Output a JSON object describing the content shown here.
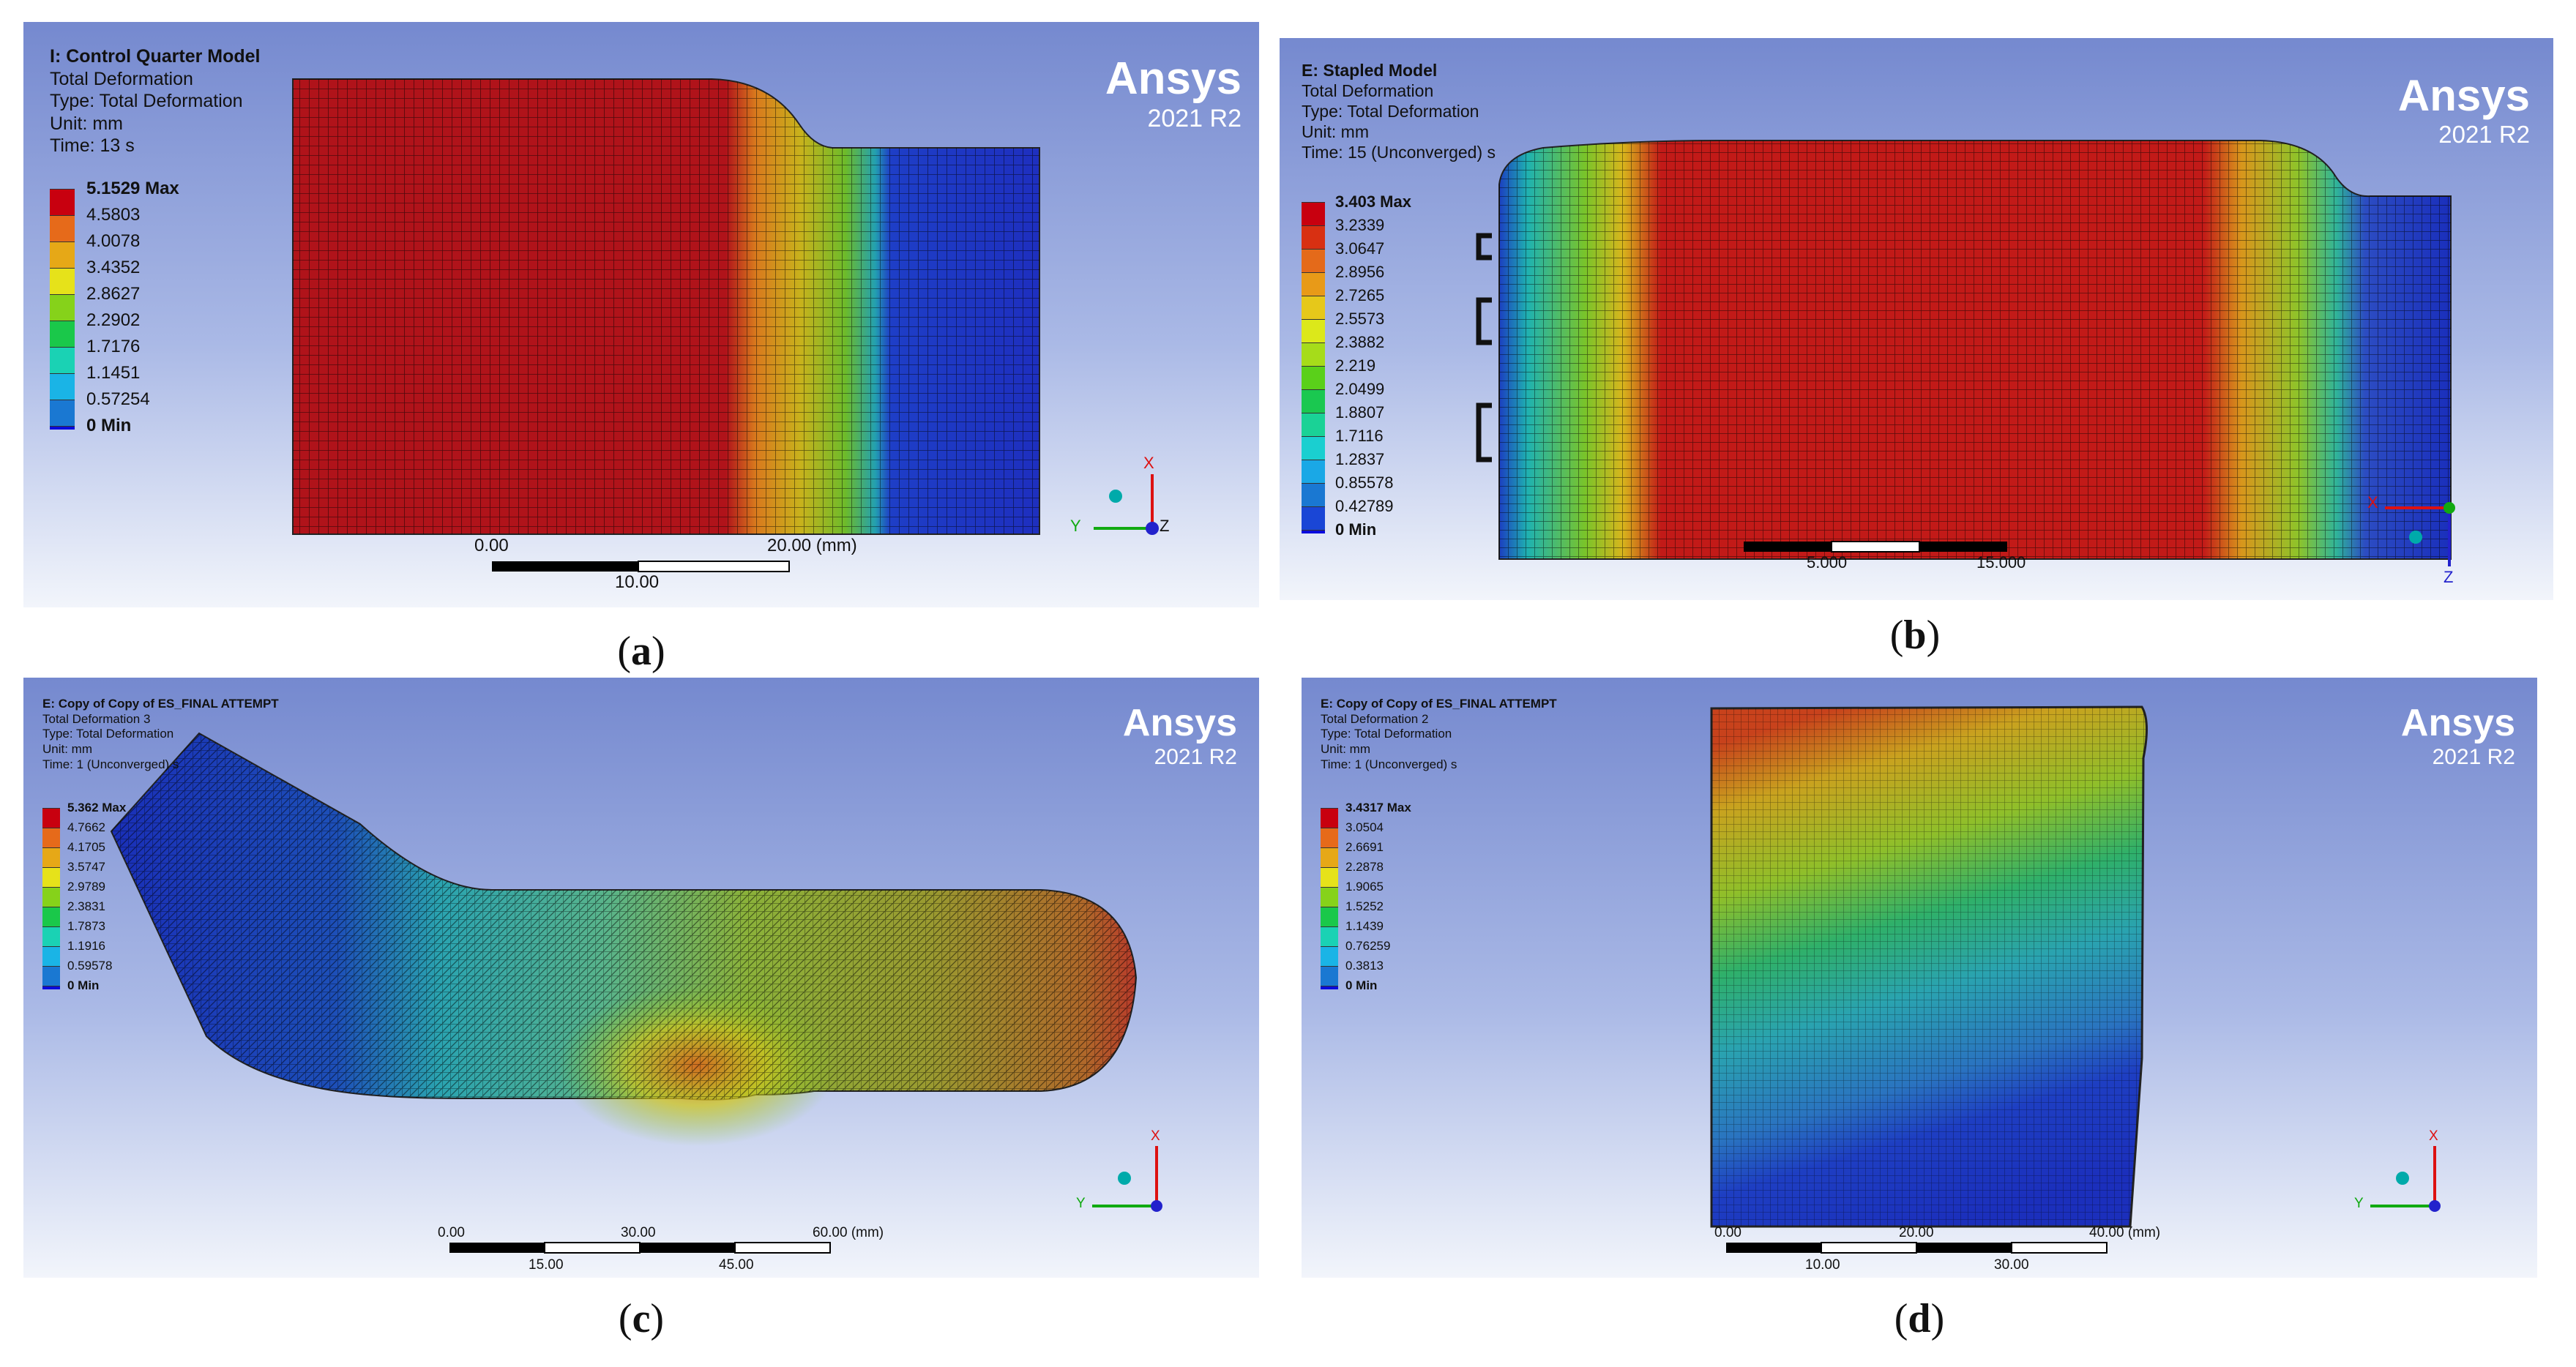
{
  "panels": [
    {
      "id": "a",
      "caption_letter": "a",
      "title": "I: Control Quarter Model",
      "result": "Total Deformation",
      "type": "Type: Total Deformation",
      "unit": "Unit: mm",
      "time": "Time: 13 s",
      "legend": [
        "5.1529 Max",
        "4.5803",
        "4.0078",
        "3.4352",
        "2.8627",
        "2.2902",
        "1.7176",
        "1.1451",
        "0.57254",
        "0 Min"
      ],
      "scale_top": [
        "0.00",
        "20.00 (mm)"
      ],
      "scale_bottom": [
        "10.00"
      ],
      "axes": [
        "X",
        "Y",
        "Z"
      ]
    },
    {
      "id": "b",
      "caption_letter": "b",
      "title": "E: Stapled Model",
      "result": "Total Deformation",
      "type": "Type: Total Deformation",
      "unit": "Unit: mm",
      "time": "Time: 15 (Unconverged) s",
      "legend": [
        "3.403 Max",
        "3.2339",
        "3.0647",
        "2.8956",
        "2.7265",
        "2.5573",
        "2.3882",
        "2.219",
        "2.0499",
        "1.8807",
        "1.7116",
        "1.2837",
        "0.85578",
        "0.42789",
        "0 Min"
      ],
      "scale_bottom": [
        "5.000",
        "15.000"
      ],
      "axes": [
        "X",
        "Z"
      ]
    },
    {
      "id": "c",
      "caption_letter": "c",
      "title": "E: Copy of Copy of ES_FINAL ATTEMPT",
      "result": "Total Deformation 3",
      "type": "Type: Total Deformation",
      "unit": "Unit: mm",
      "time": "Time: 1 (Unconverged) s",
      "legend": [
        "5.362 Max",
        "4.7662",
        "4.1705",
        "3.5747",
        "2.9789",
        "2.3831",
        "1.7873",
        "1.1916",
        "0.59578",
        "0 Min"
      ],
      "scale_top": [
        "0.00",
        "30.00",
        "60.00 (mm)"
      ],
      "scale_bottom": [
        "15.00",
        "45.00"
      ],
      "axes": [
        "X",
        "Y"
      ]
    },
    {
      "id": "d",
      "caption_letter": "d",
      "title": "E: Copy of Copy of ES_FINAL ATTEMPT",
      "result": "Total Deformation 2",
      "type": "Type: Total Deformation",
      "unit": "Unit: mm",
      "time": "Time: 1 (Unconverged) s",
      "legend": [
        "3.4317 Max",
        "3.0504",
        "2.6691",
        "2.2878",
        "1.9065",
        "1.5252",
        "1.1439",
        "0.76259",
        "0.3813",
        "0 Min"
      ],
      "scale_top": [
        "0.00",
        "20.00",
        "40.00 (mm)"
      ],
      "scale_bottom": [
        "10.00",
        "30.00"
      ],
      "axes": [
        "X",
        "Y"
      ]
    }
  ],
  "brand": {
    "name": "Ansys",
    "version": "2021 R2"
  },
  "colors": {
    "legend10": [
      "#c8000f",
      "#e66a1a",
      "#e6a817",
      "#e6e21a",
      "#86d21a",
      "#1ac84a",
      "#1ad2b4",
      "#1ab4e6",
      "#1a78d2",
      "#0a0adc"
    ],
    "legend15": [
      "#c8000f",
      "#d83012",
      "#e46a1a",
      "#e89a18",
      "#e6c81a",
      "#dce81a",
      "#a6dc1a",
      "#5ad01a",
      "#1ac850",
      "#1ad296",
      "#1acfd0",
      "#1aa8e6",
      "#1a78d2",
      "#1a46d6",
      "#0a0adc"
    ]
  }
}
